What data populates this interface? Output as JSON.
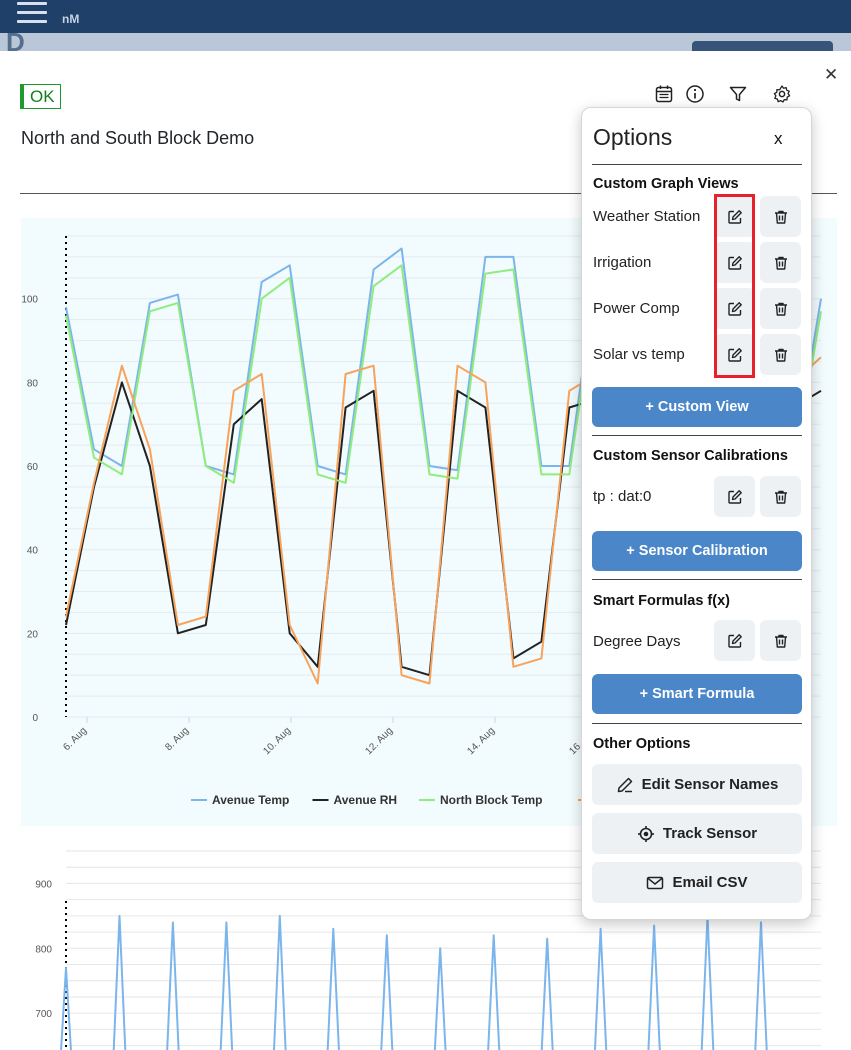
{
  "topbar": {
    "brand": "nM",
    "menu_icon": "hamburger-icon",
    "background": "#1f4068"
  },
  "dialog": {
    "status_badge": "OK",
    "status_color": "#1e9a2e",
    "title": "North and South Block Demo",
    "toolbar_icons": [
      "calendar-icon",
      "info-icon",
      "filter-icon",
      "settings-icon"
    ],
    "close_icon": "close-icon"
  },
  "chart_data": [
    {
      "type": "line",
      "title": "",
      "xlabel": "",
      "ylabel": "",
      "ylim": [
        0,
        115
      ],
      "yticks": [
        0,
        20,
        40,
        60,
        80,
        100
      ],
      "xticks": [
        "6. Aug",
        "8. Aug",
        "10. Aug",
        "12. Aug",
        "14. Aug",
        "16. Aug"
      ],
      "legend_position": "bottom",
      "grid": true,
      "series": [
        {
          "name": "Avenue Temp",
          "color": "#7cb5ec",
          "values": [
            98,
            64,
            60,
            99,
            101,
            60,
            58,
            104,
            108,
            60,
            58,
            107,
            112,
            60,
            59,
            110,
            110,
            60,
            60,
            108,
            102,
            60,
            58,
            101,
            102,
            62,
            60,
            100
          ]
        },
        {
          "name": "Avenue RH",
          "color": "#222222",
          "values": [
            22,
            55,
            80,
            60,
            20,
            22,
            70,
            76,
            20,
            12,
            74,
            78,
            12,
            10,
            78,
            74,
            14,
            18,
            74,
            76,
            18,
            20,
            72,
            80,
            20,
            22,
            74,
            78
          ]
        },
        {
          "name": "North Block Temp",
          "color": "#90ed7d",
          "values": [
            96,
            62,
            58,
            97,
            99,
            60,
            56,
            100,
            105,
            58,
            56,
            103,
            108,
            58,
            57,
            106,
            107,
            58,
            58,
            104,
            99,
            58,
            56,
            98,
            99,
            60,
            58,
            97
          ]
        },
        {
          "name": "",
          "color": "#f7a35c",
          "values": [
            24,
            56,
            84,
            64,
            22,
            24,
            78,
            82,
            22,
            8,
            82,
            84,
            10,
            8,
            84,
            80,
            12,
            14,
            78,
            82,
            16,
            18,
            76,
            88,
            18,
            20,
            80,
            86
          ]
        }
      ]
    },
    {
      "type": "line",
      "title": "",
      "xlabel": "",
      "ylabel": "",
      "ylim": [
        580,
        950
      ],
      "yticks": [
        600,
        700,
        800,
        900
      ],
      "legend_position": "none",
      "grid": true,
      "series": [
        {
          "name": "",
          "color": "#7cb5ec",
          "values": [
            770,
            850,
            840,
            840,
            850,
            830,
            820,
            800,
            820,
            815,
            830,
            835,
            850,
            840
          ]
        }
      ]
    }
  ],
  "options": {
    "title": "Options",
    "close_label": "x",
    "custom_graph_views": {
      "heading": "Custom Graph Views",
      "items": [
        "Weather Station",
        "Irrigation",
        "Power Comp",
        "Solar vs temp"
      ],
      "add_label": "+ Custom View"
    },
    "custom_sensor_calibrations": {
      "heading": "Custom Sensor Calibrations",
      "items": [
        "tp : dat:0"
      ],
      "add_label": "+ Sensor Calibration"
    },
    "smart_formulas": {
      "heading": "Smart Formulas f(x)",
      "items": [
        "Degree Days"
      ],
      "add_label": "+ Smart Formula"
    },
    "other_options": {
      "heading": "Other Options",
      "edit_sensor_names": "Edit Sensor Names",
      "track_sensor": "Track Sensor",
      "email_csv": "Email CSV"
    },
    "edit_icon": "edit-icon",
    "delete_icon": "trash-icon",
    "accent_color": "#4a86c8",
    "highlight_color": "#e8202a"
  }
}
